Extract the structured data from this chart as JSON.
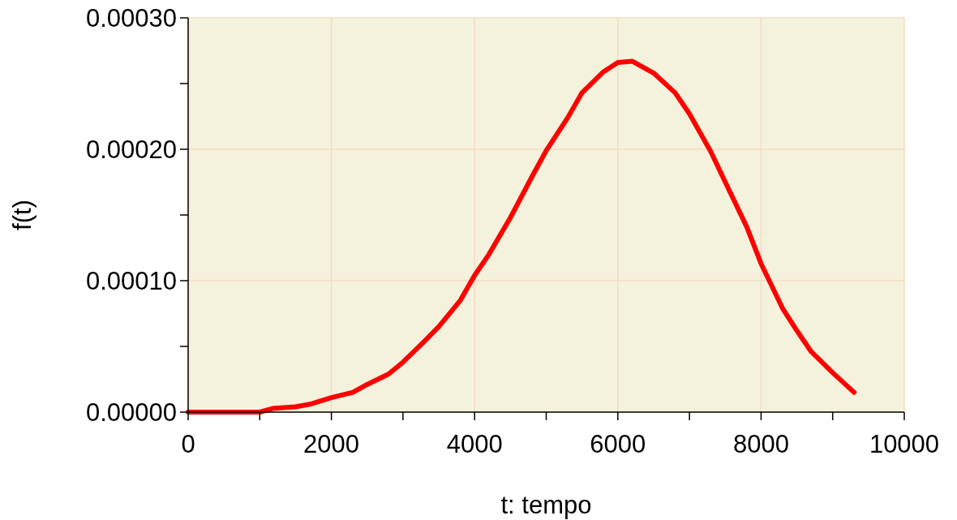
{
  "chart_data": {
    "type": "line",
    "xlabel": "t: tempo",
    "ylabel": "f(t)",
    "series": [
      {
        "color": "#ff0000",
        "x": [
          0,
          500,
          1000,
          1200,
          1500,
          1700,
          2000,
          2300,
          2500,
          2800,
          3000,
          3300,
          3500,
          3800,
          4000,
          4200,
          4500,
          4800,
          5000,
          5300,
          5500,
          5800,
          6000,
          6200,
          6500,
          6800,
          7000,
          7300,
          7500,
          7800,
          8000,
          8300,
          8500,
          8700,
          9000,
          9200,
          9300
        ],
        "values": [
          0,
          0,
          0,
          3e-06,
          4e-06,
          6e-06,
          1.1e-05,
          1.5e-05,
          2.1e-05,
          2.9e-05,
          3.8e-05,
          5.4e-05,
          6.5e-05,
          8.5e-05,
          0.000104,
          0.00012,
          0.000148,
          0.000179,
          0.000199,
          0.000224,
          0.000243,
          0.000259,
          0.000266,
          0.000267,
          0.000258,
          0.000243,
          0.000227,
          0.000198,
          0.000175,
          0.000141,
          0.000113,
          7.9e-05,
          6.2e-05,
          4.6e-05,
          3e-05,
          2e-05,
          1.5e-05
        ]
      }
    ],
    "xlim": [
      0,
      10000
    ],
    "xticks": [
      0,
      {
        "value": 1000,
        "label": null
      },
      2000,
      {
        "value": 3000,
        "label": null
      },
      4000,
      {
        "value": 5000,
        "label": null
      },
      6000,
      {
        "value": 7000,
        "label": null
      },
      8000,
      {
        "value": 9000,
        "label": null
      },
      10000
    ],
    "ylim": [
      0,
      0.0003
    ],
    "yticks": [
      {
        "value": 0,
        "label": "0.00000"
      },
      {
        "value": 5e-05,
        "label": null
      },
      {
        "value": 0.0001,
        "label": "0.00010"
      },
      {
        "value": 0.00015,
        "label": null
      },
      {
        "value": 0.0002,
        "label": "0.00020"
      },
      {
        "value": 0.00025,
        "label": null
      },
      {
        "value": 0.0003,
        "label": "0.00030"
      }
    ],
    "grid": true,
    "marker": "none",
    "line_style": "solid"
  }
}
